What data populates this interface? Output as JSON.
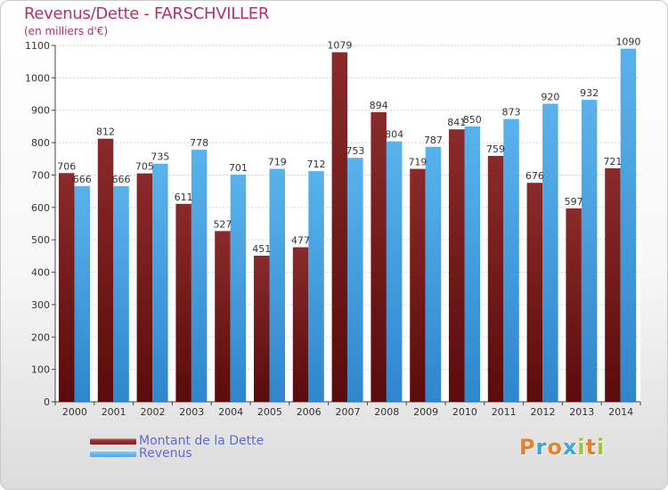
{
  "chart_data": {
    "type": "bar",
    "title": "Revenus/Dette - FARSCHVILLER",
    "subtitle": "(en milliers d'€)",
    "categories": [
      "2000",
      "2001",
      "2002",
      "2003",
      "2004",
      "2005",
      "2006",
      "2007",
      "2008",
      "2009",
      "2010",
      "2011",
      "2012",
      "2013",
      "2014"
    ],
    "series": [
      {
        "name": "Montant de la Dette",
        "color": "#7b2020",
        "values": [
          706,
          812,
          705,
          611,
          527,
          451,
          477,
          1079,
          894,
          719,
          841,
          759,
          676,
          597,
          721
        ]
      },
      {
        "name": "Revenus",
        "color": "#4ea8e6",
        "values": [
          666,
          666,
          735,
          778,
          701,
          719,
          712,
          753,
          804,
          787,
          850,
          873,
          920,
          932,
          1090
        ]
      }
    ],
    "ylim": [
      0,
      1100
    ],
    "yticks": [
      0,
      100,
      200,
      300,
      400,
      500,
      600,
      700,
      800,
      900,
      1000,
      1100
    ],
    "grid": true,
    "legend": "bottom-left"
  },
  "logo": {
    "letters": [
      "P",
      "r",
      "o",
      "x",
      "i",
      "t",
      "i"
    ],
    "colors": [
      "#e8822a",
      "#3da7d8",
      "#e8822a",
      "#3da7d8",
      "#9fc43a",
      "#e8822a",
      "#9fc43a"
    ]
  }
}
